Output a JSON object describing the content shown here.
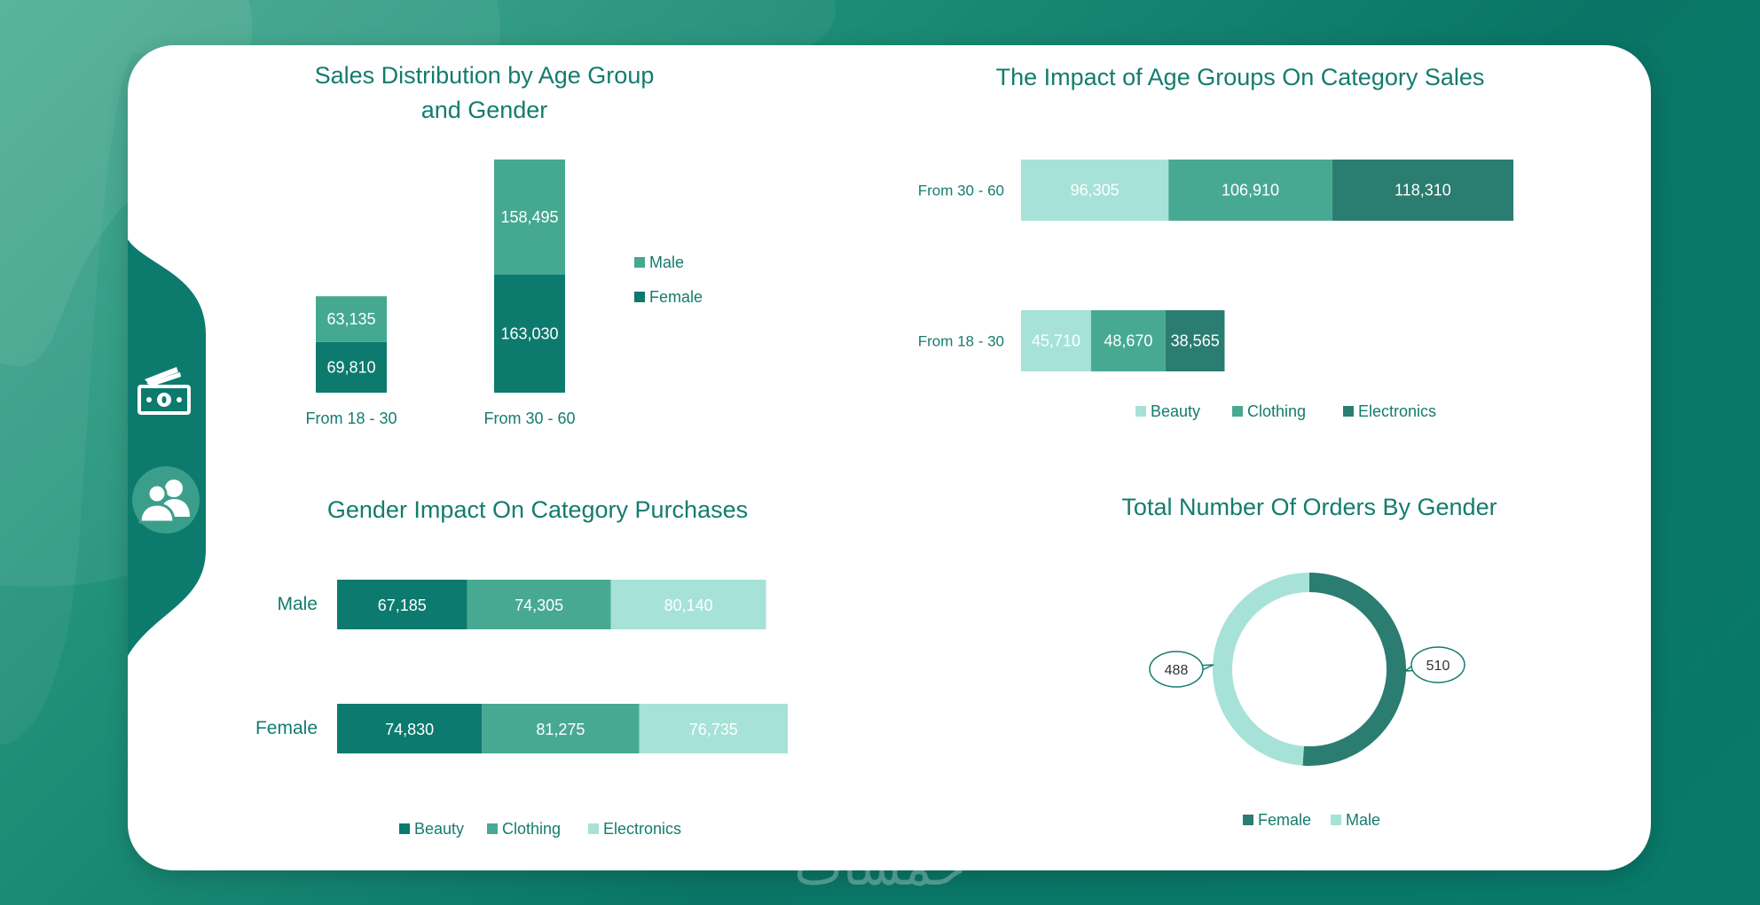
{
  "colors": {
    "male": "#45a891",
    "female": "#0d7a6e",
    "beauty_light": "#a6e2d8",
    "clothing": "#48a993",
    "electronics_dark": "#2a7d70",
    "beauty_dark": "#0c7a6e",
    "electronics_light": "#a6e2d8",
    "title": "#137c6e",
    "label": "#137c6e"
  },
  "sidebar": {
    "icons": [
      "money-icon",
      "users-icon"
    ]
  },
  "chart_data": [
    {
      "id": "age-gender",
      "type": "bar",
      "stacked": true,
      "orientation": "vertical",
      "title_lines": [
        "Sales Distribution by Age Group",
        "and Gender"
      ],
      "categories": [
        "From 18 - 30",
        "From 30 - 60"
      ],
      "series": [
        {
          "name": "Female",
          "values": [
            69810,
            163030
          ],
          "labels": [
            "69,810",
            "163,030"
          ]
        },
        {
          "name": "Male",
          "values": [
            63135,
            158495
          ],
          "labels": [
            "63,135",
            "158,495"
          ]
        }
      ],
      "legend": [
        "Male",
        "Female"
      ],
      "ylim": [
        0,
        330000
      ]
    },
    {
      "id": "age-category",
      "type": "bar",
      "stacked": true,
      "orientation": "horizontal",
      "title": "The Impact of Age Groups On Category Sales",
      "categories": [
        "From 30 - 60",
        "From 18 - 30"
      ],
      "series": [
        {
          "name": "Beauty",
          "values": [
            96305,
            45710
          ],
          "labels": [
            "96,305",
            "45,710"
          ]
        },
        {
          "name": "Clothing",
          "values": [
            106910,
            48670
          ],
          "labels": [
            "106,910",
            "48,670"
          ]
        },
        {
          "name": "Electronics",
          "values": [
            118310,
            38565
          ],
          "labels": [
            "118,310",
            "38,565"
          ]
        }
      ],
      "legend": [
        "Beauty",
        "Clothing",
        "Electronics"
      ],
      "xlim": [
        0,
        321525
      ]
    },
    {
      "id": "gender-category",
      "type": "bar",
      "stacked": true,
      "orientation": "horizontal",
      "title": "Gender Impact On Category Purchases",
      "categories": [
        "Male",
        "Female"
      ],
      "series": [
        {
          "name": "Beauty",
          "values": [
            67185,
            74830
          ],
          "labels": [
            "67,185",
            "74,830"
          ]
        },
        {
          "name": "Clothing",
          "values": [
            74305,
            81275
          ],
          "labels": [
            "74,305",
            "81,275"
          ]
        },
        {
          "name": "Electronics",
          "values": [
            80140,
            76735
          ],
          "labels": [
            "80,140",
            "76,735"
          ]
        }
      ],
      "legend": [
        "Beauty",
        "Clothing",
        "Electronics"
      ],
      "xlim": [
        0,
        232840
      ]
    },
    {
      "id": "orders-gender",
      "type": "pie",
      "donut": true,
      "title": "Total Number Of Orders By Gender",
      "slices": [
        {
          "name": "Female",
          "value": 510,
          "label": "510"
        },
        {
          "name": "Male",
          "value": 488,
          "label": "488"
        }
      ],
      "legend": [
        "Female",
        "Male"
      ]
    }
  ],
  "watermark": "خمسات"
}
